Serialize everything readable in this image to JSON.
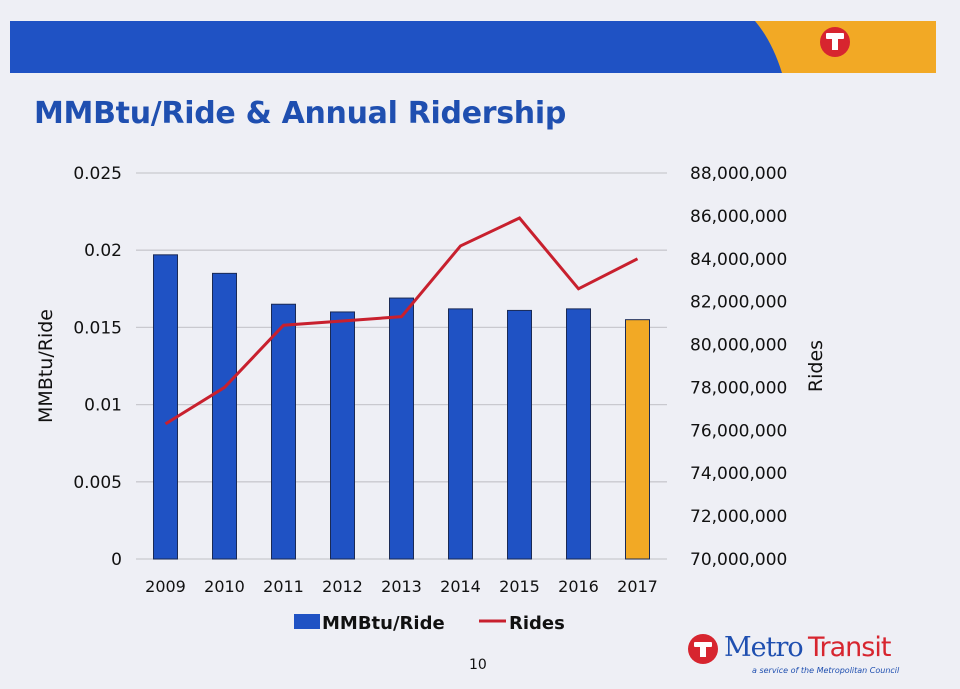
{
  "slide": {
    "title": "MMBtu/Ride & Annual Ridership",
    "page_number": "10",
    "logo": {
      "name_part1": "Metro",
      "name_part2": "Transit",
      "subtitle": "a service of the Metropolitan Council",
      "icon": "metro-transit-t-icon"
    },
    "colors": {
      "banner_blue": "#1f52c4",
      "banner_orange": "#f2a925",
      "logo_red": "#d7252f",
      "title_blue": "#1f4fb0"
    }
  },
  "chart_data": {
    "type": "bar",
    "title": "MMBtu/Ride & Annual Ridership",
    "categories": [
      "2009",
      "2010",
      "2011",
      "2012",
      "2013",
      "2014",
      "2015",
      "2016",
      "2017"
    ],
    "series": [
      {
        "name": "MMBtu/Ride",
        "type": "bar",
        "axis": "left",
        "color": "#1f52c4",
        "highlight_color": "#f2a925",
        "highlight_category": "2017",
        "values": [
          0.0197,
          0.0185,
          0.0165,
          0.016,
          0.0169,
          0.0162,
          0.0161,
          0.0162,
          0.0155
        ]
      },
      {
        "name": "Rides",
        "type": "line",
        "axis": "right",
        "color": "#c8202e",
        "values": [
          76300000,
          78000000,
          80900000,
          81100000,
          81300000,
          84600000,
          85900000,
          82600000,
          84000000
        ]
      }
    ],
    "y_left": {
      "label": "MMBtu/Ride",
      "range": [
        0,
        0.025
      ],
      "ticks": [
        "0",
        "0.005",
        "0.01",
        "0.015",
        "0.02",
        "0.025"
      ],
      "tick_values": [
        0,
        0.005,
        0.01,
        0.015,
        0.02,
        0.025
      ]
    },
    "y_right": {
      "label": "Rides",
      "range": [
        70000000,
        88000000
      ],
      "ticks": [
        "70,000,000",
        "72,000,000",
        "74,000,000",
        "76,000,000",
        "78,000,000",
        "80,000,000",
        "82,000,000",
        "84,000,000",
        "86,000,000",
        "88,000,000"
      ],
      "tick_values": [
        70000000,
        72000000,
        74000000,
        76000000,
        78000000,
        80000000,
        82000000,
        84000000,
        86000000,
        88000000
      ]
    },
    "grid": true,
    "legend": {
      "position": "bottom",
      "entries": [
        "MMBtu/Ride",
        "Rides"
      ]
    }
  }
}
